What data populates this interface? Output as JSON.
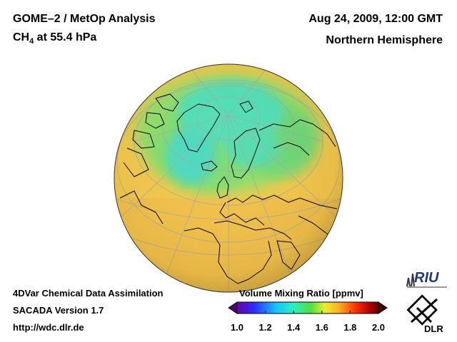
{
  "header": {
    "title": "GOME–2 / MetOp Analysis",
    "species_main": "CH",
    "species_sub": "4",
    "species_rest": " at 55.4 hPa",
    "datetime": "Aug 24, 2009, 12:00 GMT",
    "region": "Northern Hemisphere"
  },
  "footer": {
    "line1": "4DVar Chemical Data Assimilation",
    "line2": "SACADA Version 1.7",
    "line3": "http://wdc.dlr.de"
  },
  "colorbar": {
    "title": "Volume Mixing Ratio [ppmv]",
    "ticks": [
      "1.0",
      "1.2",
      "1.4",
      "1.6",
      "1.8",
      "2.0"
    ],
    "min": 1.0,
    "max": 2.0
  },
  "logos": {
    "riu": "RIU",
    "dlr": "DLR"
  },
  "colors": {
    "low_field": "#f7c84a",
    "mid_field": "#5ee08a",
    "high_field": "#3ee4d8",
    "coastline": "#000000",
    "graticule": "#a8a8a8"
  }
}
